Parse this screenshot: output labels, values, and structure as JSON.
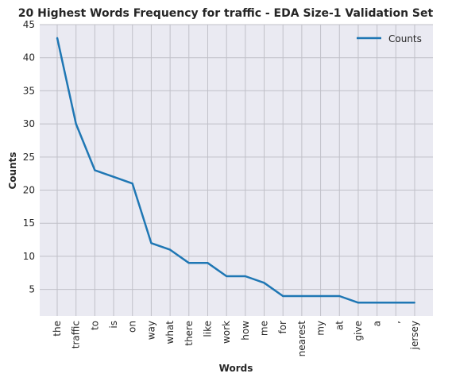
{
  "chart_data": {
    "type": "line",
    "title": "20 Highest Words Frequency for traffic - EDA Size-1 Validation Set",
    "xlabel": "Words",
    "ylabel": "Counts",
    "categories": [
      "the",
      "traffic",
      "to",
      "is",
      "on",
      "way",
      "what",
      "there",
      "like",
      "work",
      "how",
      "me",
      "for",
      "nearest",
      "my",
      "at",
      "give",
      "a",
      ",",
      "jersey"
    ],
    "series": [
      {
        "name": "Counts",
        "values": [
          43,
          30,
          23,
          22,
          21,
          12,
          11,
          9,
          9,
          7,
          7,
          6,
          4,
          4,
          4,
          4,
          3,
          3,
          3,
          3
        ]
      }
    ],
    "ylim": [
      1,
      45
    ],
    "yticks": [
      5,
      10,
      15,
      20,
      25,
      30,
      35,
      40,
      45
    ],
    "grid": true,
    "legend_position": "upper right",
    "colors": {
      "background": "#EAEAF2",
      "grid": "#C0C0C8",
      "line": "#1F77B4"
    }
  }
}
